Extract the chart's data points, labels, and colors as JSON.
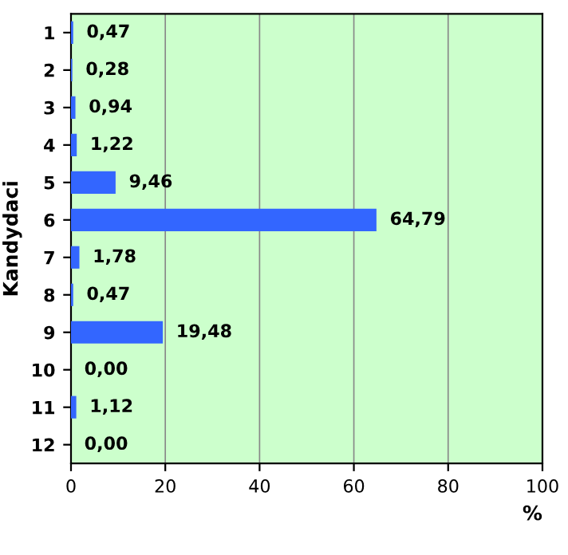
{
  "chart_data": {
    "type": "bar",
    "orientation": "horizontal",
    "ylabel": "Kandydaci",
    "xlabel": "%",
    "categories": [
      "1",
      "2",
      "3",
      "4",
      "5",
      "6",
      "7",
      "8",
      "9",
      "10",
      "11",
      "12"
    ],
    "values": [
      0.47,
      0.28,
      0.94,
      1.22,
      9.46,
      64.79,
      1.78,
      0.47,
      19.48,
      0.0,
      1.12,
      0.0
    ],
    "value_labels": [
      "0,47",
      "0,28",
      "0,94",
      "1,22",
      "9,46",
      "64,79",
      "1,78",
      "0,47",
      "19,48",
      "0,00",
      "1,12",
      "0,00"
    ],
    "color": "#3366ff",
    "xlim": [
      0,
      100
    ],
    "xticks": [
      0,
      20,
      40,
      60,
      80,
      100
    ],
    "grid": "x",
    "legend": false
  }
}
